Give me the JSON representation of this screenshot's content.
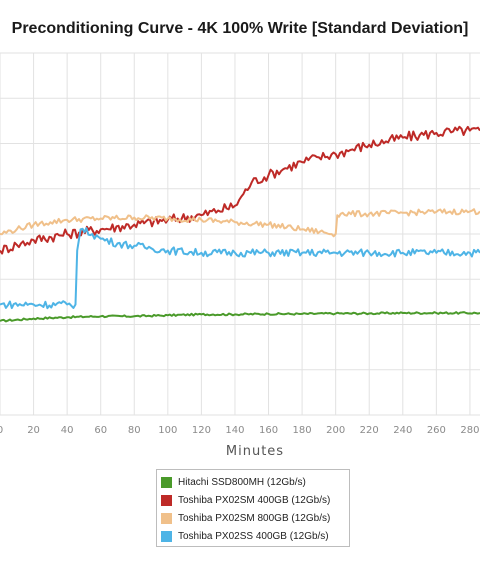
{
  "chart_data": {
    "type": "line",
    "title": "Preconditioning Curve - 4K 100% Write [Standard Deviation]",
    "xlabel": "Minutes",
    "ylabel": "",
    "xlim": [
      0,
      286
    ],
    "ylim": [
      0,
      7.7
    ],
    "grid": true,
    "legend_position": "bottom",
    "x_ticks": [
      "0",
      "20",
      "40",
      "60",
      "80",
      "100",
      "120",
      "140",
      "160",
      "180",
      "200",
      "220",
      "240",
      "260",
      "280"
    ],
    "series": [
      {
        "name": "Hitachi SSD800MH (12Gb/s)",
        "color": "#4a9a2a",
        "x": [
          0,
          20,
          40,
          60,
          80,
          100,
          120,
          140,
          160,
          180,
          200,
          220,
          240,
          260,
          286
        ],
        "y": [
          2.0,
          2.05,
          2.08,
          2.1,
          2.1,
          2.12,
          2.14,
          2.14,
          2.15,
          2.15,
          2.16,
          2.16,
          2.17,
          2.17,
          2.17
        ]
      },
      {
        "name": "Toshiba PX02SM 400GB (12Gb/s)",
        "color": "#be2a27",
        "x": [
          0,
          10,
          20,
          40,
          60,
          80,
          100,
          120,
          130,
          140,
          145,
          150,
          160,
          170,
          180,
          190,
          200,
          210,
          220,
          230,
          240,
          250,
          260,
          270,
          280,
          286
        ],
        "y": [
          3.5,
          3.62,
          3.72,
          3.85,
          3.95,
          4.05,
          4.15,
          4.25,
          4.35,
          4.45,
          4.7,
          4.95,
          5.1,
          5.25,
          5.38,
          5.48,
          5.55,
          5.65,
          5.75,
          5.82,
          5.9,
          5.95,
          6.0,
          6.03,
          6.05,
          6.05
        ]
      },
      {
        "name": "Toshiba PX02SM 800GB (12Gb/s)",
        "color": "#f0c08a",
        "x": [
          0,
          10,
          20,
          30,
          40,
          60,
          80,
          100,
          120,
          140,
          160,
          180,
          200,
          201,
          203,
          220,
          240,
          260,
          280,
          286
        ],
        "y": [
          3.85,
          3.95,
          4.05,
          4.1,
          4.15,
          4.18,
          4.2,
          4.18,
          4.15,
          4.1,
          4.05,
          3.95,
          3.85,
          4.25,
          4.28,
          4.28,
          4.3,
          4.32,
          4.33,
          4.33
        ]
      },
      {
        "name": "Toshiba PX02SS 400GB (12Gb/s)",
        "color": "#4eb4e6",
        "x": [
          0,
          20,
          40,
          45,
          46,
          48,
          55,
          60,
          70,
          80,
          90,
          100,
          120,
          140,
          160,
          180,
          200,
          220,
          240,
          260,
          280,
          286
        ],
        "y": [
          2.35,
          2.35,
          2.35,
          2.35,
          3.5,
          3.95,
          3.85,
          3.75,
          3.65,
          3.6,
          3.55,
          3.5,
          3.45,
          3.45,
          3.45,
          3.45,
          3.45,
          3.45,
          3.45,
          3.45,
          3.45,
          3.45
        ]
      }
    ]
  }
}
